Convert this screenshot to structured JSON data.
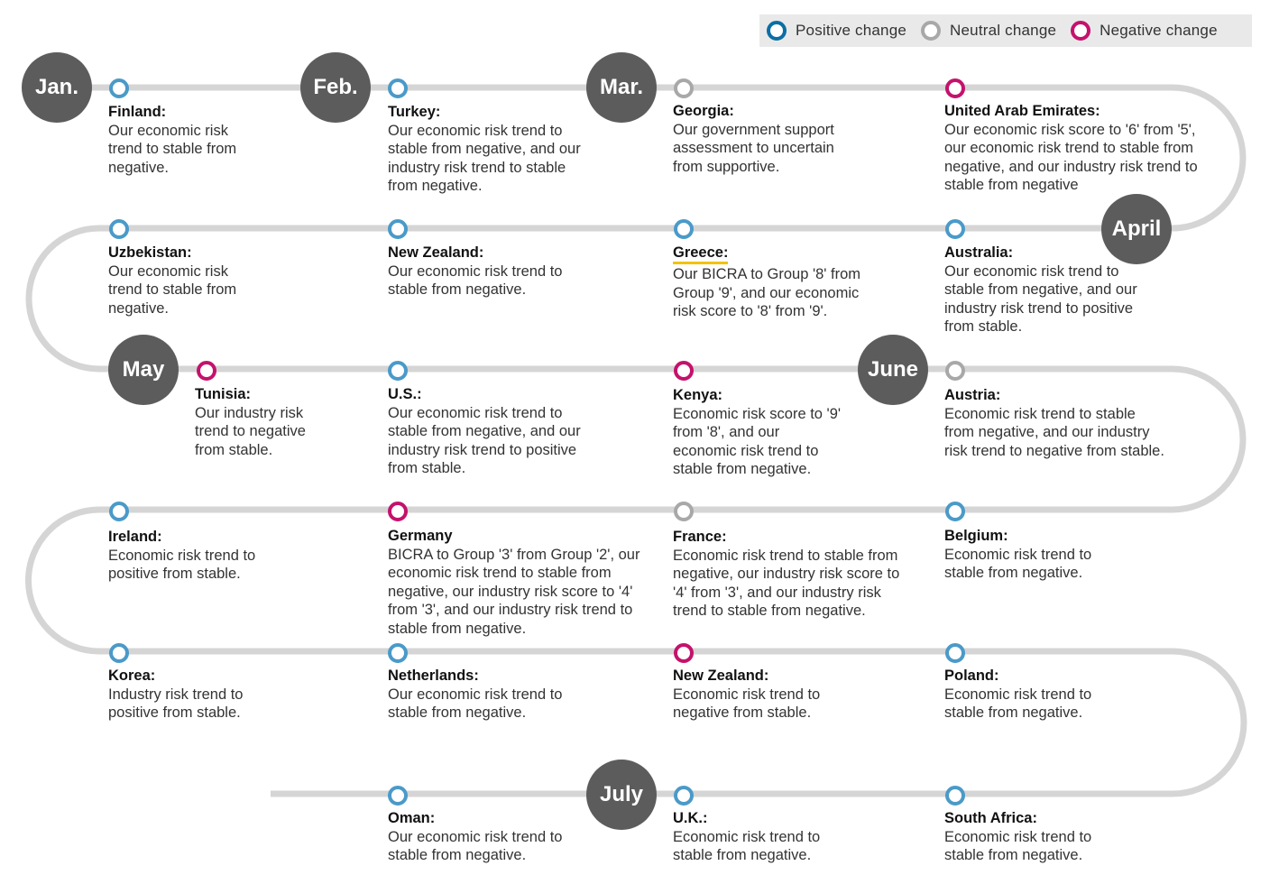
{
  "legend": [
    {
      "label": "Positive change",
      "type": "positive"
    },
    {
      "label": "Neutral change",
      "type": "neutral"
    },
    {
      "label": "Negative change",
      "type": "negative"
    }
  ],
  "colors": {
    "positive": "#4a9ac9",
    "neutral": "#a8a8a8",
    "negative": "#c4126c",
    "legend_positive": "#0a6fa4",
    "track": "#d5d5d5",
    "month_fill": "#5c5c5c",
    "highlight": "#f2c200"
  },
  "months": [
    "Jan.",
    "Feb.",
    "Mar.",
    "April",
    "May",
    "June",
    "July"
  ],
  "events": [
    {
      "country": "Finland:",
      "type": "positive",
      "text": "Our economic risk trend to stable from negative."
    },
    {
      "country": "Turkey:",
      "type": "positive",
      "text": "Our economic risk trend to stable from negative, and our industry risk trend to stable from negative."
    },
    {
      "country": "Georgia:",
      "type": "neutral",
      "text": "Our government support assessment to uncertain from supportive."
    },
    {
      "country": "United Arab Emirates:",
      "type": "negative",
      "text": "Our economic risk score to '6' from '5', our economic risk trend to stable from negative, and our industry risk trend to stable from negative"
    },
    {
      "country": "Uzbekistan:",
      "type": "positive",
      "text": "Our economic risk trend to stable from negative."
    },
    {
      "country": "New Zealand:",
      "type": "positive",
      "text": "Our economic risk trend to stable from negative."
    },
    {
      "country": "Greece:",
      "type": "positive",
      "highlight": true,
      "text": "Our BICRA to Group '8' from Group '9', and our economic risk score to '8' from '9'."
    },
    {
      "country": "Australia:",
      "type": "positive",
      "text": "Our economic risk trend to stable from negative, and our industry risk trend to positive from stable."
    },
    {
      "country": "Tunisia:",
      "type": "negative",
      "text": "Our industry risk trend to negative from stable."
    },
    {
      "country": "U.S.:",
      "type": "positive",
      "text": "Our economic risk trend to stable from negative, and our industry risk trend to positive from stable."
    },
    {
      "country": "Kenya:",
      "type": "negative",
      "text": "Economic risk score to '9' from '8', and our economic risk trend to stable from negative."
    },
    {
      "country": "Austria:",
      "type": "neutral",
      "text": "Economic risk trend to stable from negative, and our industry risk trend to negative from stable."
    },
    {
      "country": "Ireland:",
      "type": "positive",
      "text": "Economic risk trend to positive from stable."
    },
    {
      "country": "Germany",
      "type": "negative",
      "text": "BICRA to Group '3' from Group '2', our economic risk trend to stable from negative, our industry risk score to '4' from '3', and our industry risk trend to stable from negative."
    },
    {
      "country": "France:",
      "type": "neutral",
      "text": "Economic risk trend to stable from negative, our industry risk score to '4' from '3', and our industry risk trend to stable from negative."
    },
    {
      "country": "Belgium:",
      "type": "positive",
      "text": "Economic risk trend to stable from negative."
    },
    {
      "country": "Korea:",
      "type": "positive",
      "text": "Industry risk trend to positive from stable."
    },
    {
      "country": "Netherlands:",
      "type": "positive",
      "text": "Our economic risk trend to stable from negative."
    },
    {
      "country": "New Zealand:",
      "type": "negative",
      "text": "Economic risk trend to negative from stable."
    },
    {
      "country": "Poland:",
      "type": "positive",
      "text": "Economic risk trend to stable from negative."
    },
    {
      "country": "Oman:",
      "type": "positive",
      "text": "Our economic risk trend to stable from negative."
    },
    {
      "country": "U.K.:",
      "type": "positive",
      "text": "Economic risk trend to stable from negative."
    },
    {
      "country": "South Africa:",
      "type": "positive",
      "text": "Economic risk trend to stable from negative."
    }
  ]
}
